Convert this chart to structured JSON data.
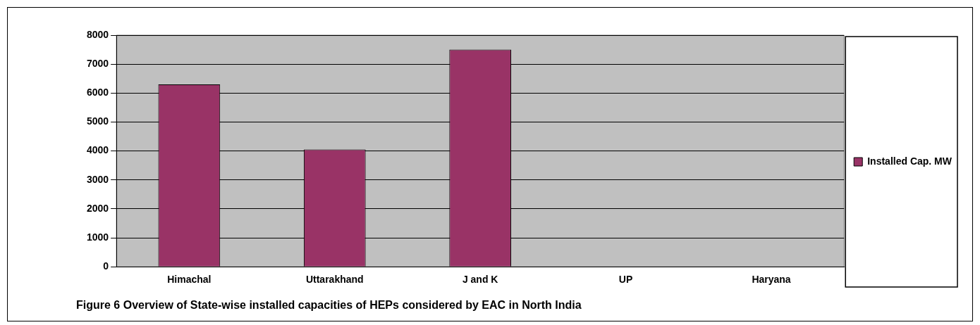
{
  "chart_data": {
    "type": "bar",
    "categories": [
      "Himachal",
      "Uttarakhand",
      "J and K",
      "UP",
      "Haryana"
    ],
    "series": [
      {
        "name": "Installed Cap. MW",
        "color": "#993366",
        "values": [
          6300,
          4050,
          7500,
          0,
          0
        ]
      }
    ],
    "ylim": [
      0,
      8000
    ],
    "yticks": [
      0,
      1000,
      2000,
      3000,
      4000,
      5000,
      6000,
      7000,
      8000
    ],
    "grid": "y",
    "legend": "right",
    "annotations": [
      "Figure 6 Overview of State-wise installed capacities of HEPs considered by EAC in North India"
    ]
  }
}
